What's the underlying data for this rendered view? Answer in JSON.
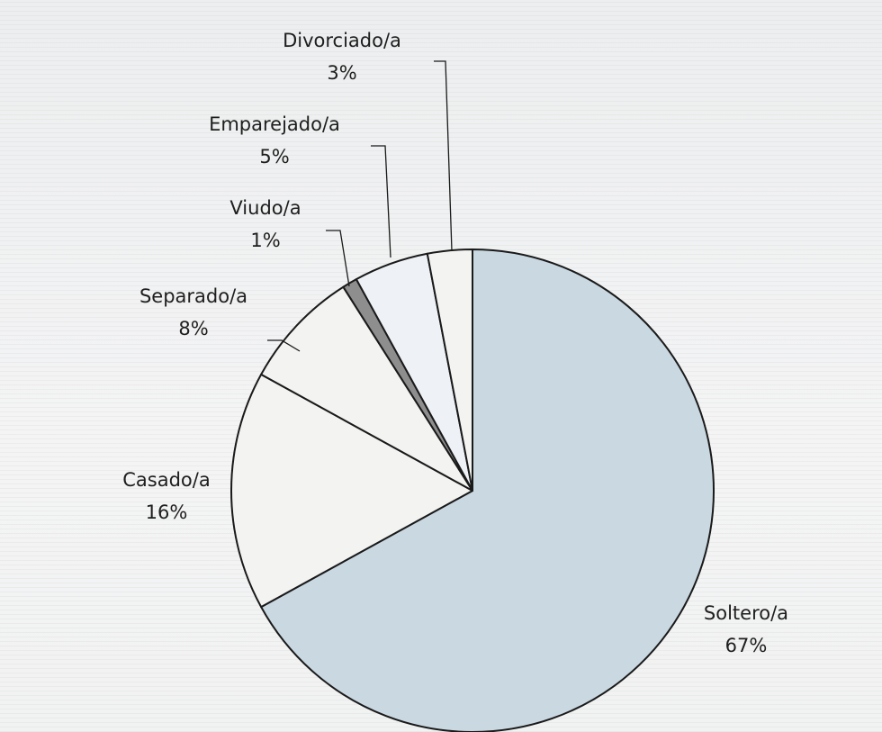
{
  "chart_data": {
    "type": "pie",
    "title": "",
    "unit": "%",
    "start_angle_deg": 0,
    "direction": "clockwise",
    "slices": [
      {
        "label": "Soltero/a",
        "value": 67,
        "value_label": "67%",
        "color": "#c9d8e1"
      },
      {
        "label": "Casado/a",
        "value": 16,
        "value_label": "16%",
        "color": "#f3f3f2"
      },
      {
        "label": "Separado/a",
        "value": 8,
        "value_label": "8%",
        "color": "#f3f3f2"
      },
      {
        "label": "Viudo/a",
        "value": 1,
        "value_label": "1%",
        "color": "#8e8e8e"
      },
      {
        "label": "Emparejado/a",
        "value": 5,
        "value_label": "5%",
        "color": "#eef2f6"
      },
      {
        "label": "Divorciado/a",
        "value": 3,
        "value_label": "3%",
        "color": "#f3f3f2"
      }
    ],
    "legend": "none",
    "stroke_color": "#1a1a1a"
  }
}
